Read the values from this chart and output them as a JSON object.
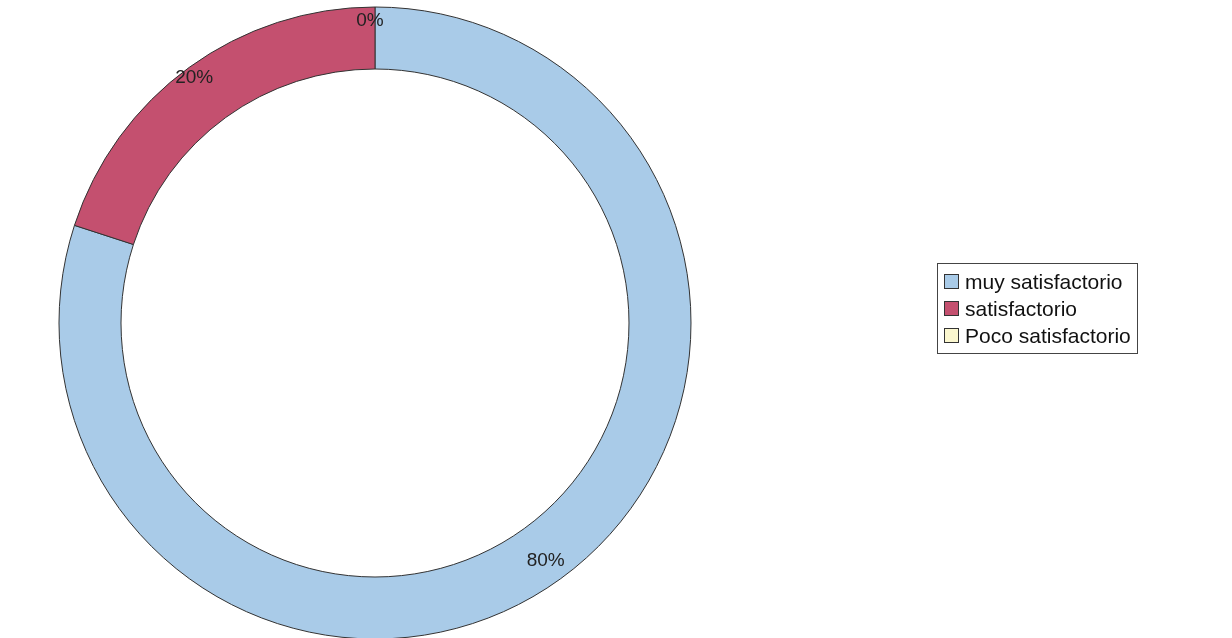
{
  "chart_data": {
    "type": "donut",
    "categories": [
      "muy satisfactorio",
      "satisfactorio",
      "Poco satisfactorio"
    ],
    "values": [
      80,
      20,
      0
    ],
    "colors": [
      "#a9cbe8",
      "#c4506f",
      "#fbf7cf"
    ],
    "value_labels": [
      "80%",
      "20%",
      "0%"
    ],
    "legend": "right"
  }
}
